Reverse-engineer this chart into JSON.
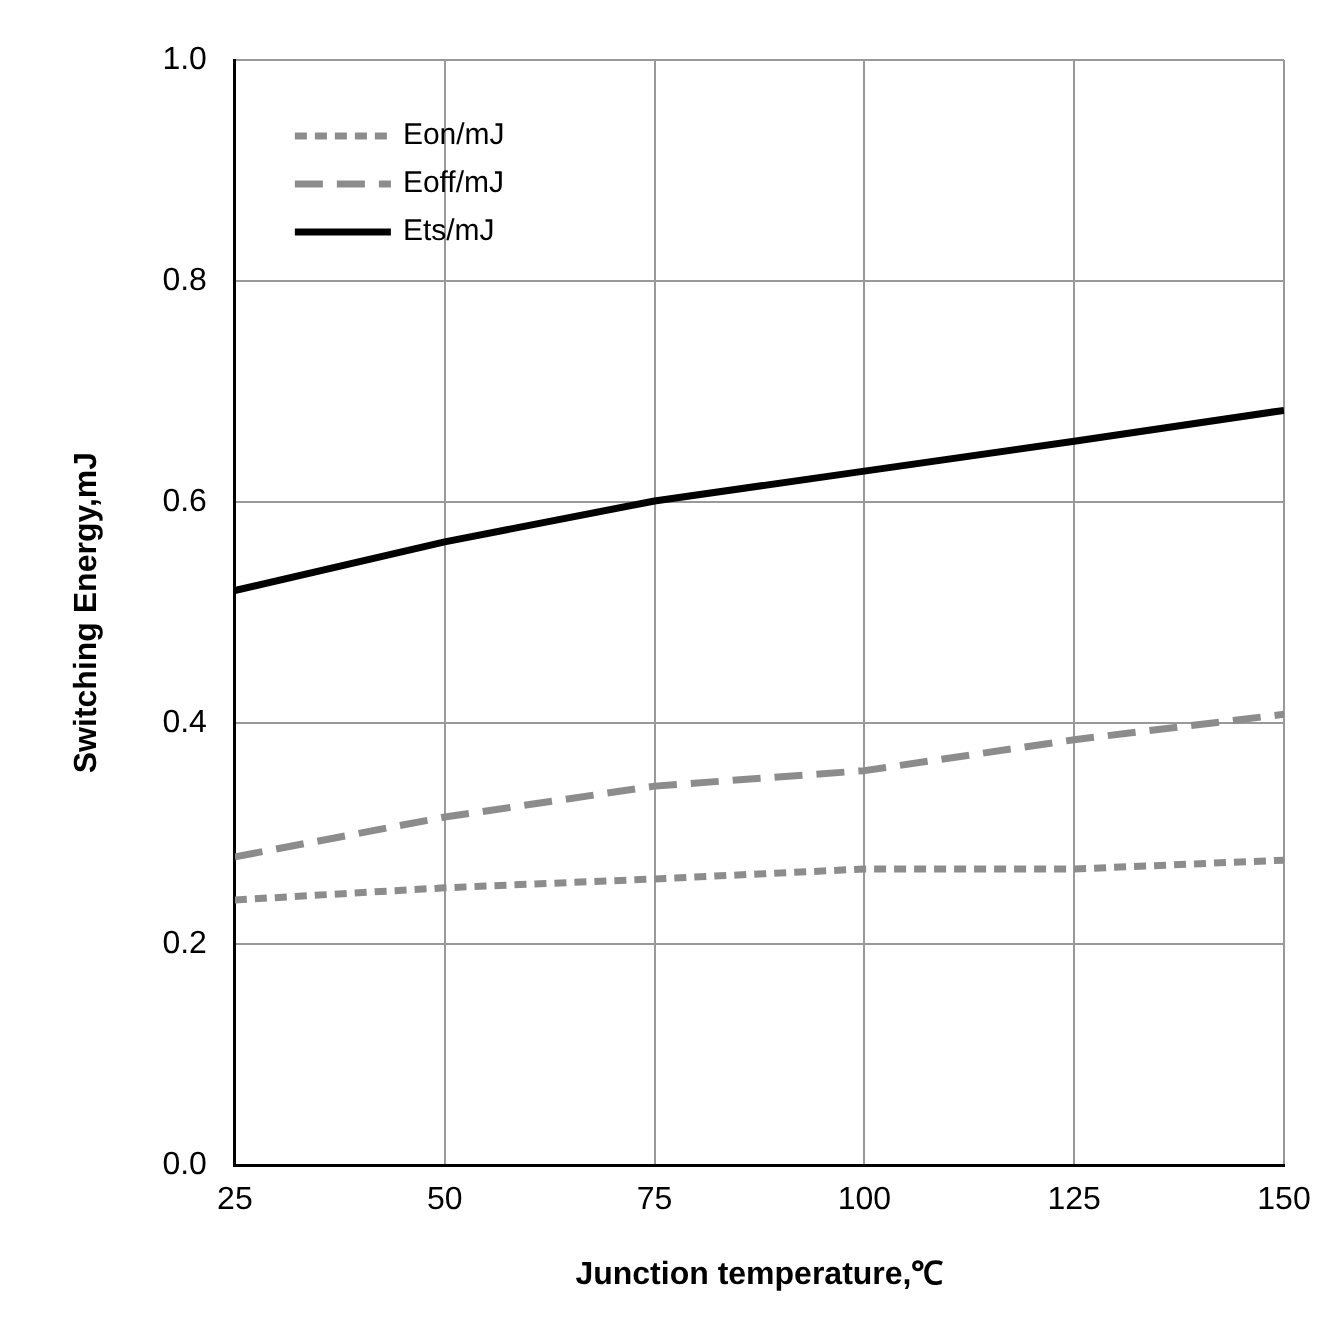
{
  "chart_data": {
    "type": "line",
    "xlabel": "Junction temperature,℃",
    "ylabel": "Switching Energy,mJ",
    "x": [
      25,
      50,
      75,
      100,
      125,
      150
    ],
    "series": [
      {
        "name": "Eon/mJ",
        "color": "#8c8c8c",
        "line_style": "dotted",
        "values": [
          0.24,
          0.251,
          0.259,
          0.268,
          0.268,
          0.276
        ]
      },
      {
        "name": "Eoff/mJ",
        "color": "#8c8c8c",
        "line_style": "dashed",
        "values": [
          0.279,
          0.315,
          0.343,
          0.357,
          0.385,
          0.408
        ]
      },
      {
        "name": "Ets/mJ",
        "color": "#000000",
        "line_style": "solid",
        "values": [
          0.52,
          0.564,
          0.601,
          0.628,
          0.655,
          0.683
        ]
      }
    ],
    "xlim": [
      25,
      150
    ],
    "xticks": [
      25,
      50,
      75,
      100,
      125,
      150
    ],
    "ylim": [
      0,
      1
    ],
    "yticks": [
      {
        "value": 0,
        "label": "0.0"
      },
      {
        "value": 0.2,
        "label": "0.2"
      },
      {
        "value": 0.4,
        "label": "0.4"
      },
      {
        "value": 0.6,
        "label": "0.6"
      },
      {
        "value": 0.8,
        "label": "0.8"
      },
      {
        "value": 1,
        "label": "1.0"
      }
    ],
    "grid": true,
    "legend": "top left",
    "marker": "none"
  }
}
